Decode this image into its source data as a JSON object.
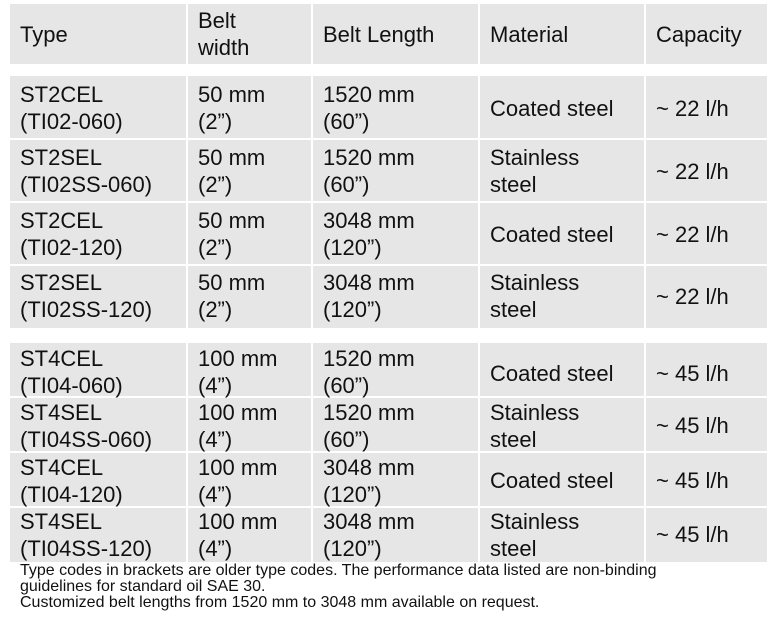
{
  "headers": [
    "Type",
    "Belt\nwidth",
    "Belt Length",
    "Material",
    "Capacity"
  ],
  "group1": [
    {
      "type": "ST2CEL\n(TI02-060)",
      "width": "50 mm\n(2”)",
      "length": "1520 mm\n(60”)",
      "material": "Coated steel",
      "capacity": "~ 22 l/h"
    },
    {
      "type": "ST2SEL\n(TI02SS-060)",
      "width": "50 mm\n(2”)",
      "length": "1520 mm\n(60”)",
      "material": "Stainless\nsteel",
      "capacity": "~ 22 l/h"
    },
    {
      "type": "ST2CEL\n(TI02-120)",
      "width": "50 mm\n(2”)",
      "length": "3048 mm\n(120”)",
      "material": "Coated steel",
      "capacity": "~ 22 l/h"
    },
    {
      "type": "ST2SEL\n(TI02SS-120)",
      "width": "50 mm\n(2”)",
      "length": "3048 mm\n(120”)",
      "material": "Stainless\nsteel",
      "capacity": "~ 22 l/h"
    }
  ],
  "group2": [
    {
      "type": "ST4CEL\n(TI04-060)",
      "width": "100 mm\n(4”)",
      "length": "1520 mm\n(60”)",
      "material": "Coated steel",
      "capacity": "~ 45 l/h"
    },
    {
      "type": "ST4SEL\n(TI04SS-060)",
      "width": "100 mm\n(4”)",
      "length": "1520 mm\n(60”)",
      "material": "Stainless\nsteel",
      "capacity": "~ 45 l/h"
    },
    {
      "type": "ST4CEL\n(TI04-120)",
      "width": "100 mm\n(4”)",
      "length": "3048 mm\n(120”)",
      "material": "Coated steel",
      "capacity": "~ 45 l/h"
    },
    {
      "type": "ST4SEL\n(TI04SS-120)",
      "width": "100 mm\n(4”)",
      "length": "3048 mm\n(120”)",
      "material": "Stainless\nsteel",
      "capacity": "~ 45 l/h"
    }
  ],
  "notes": [
    "Type codes in brackets are older type codes. The performance data listed are non-binding",
    "guidelines for standard oil SAE 30.",
    "Customized belt lengths from 1520 mm to 3048 mm available on request."
  ]
}
